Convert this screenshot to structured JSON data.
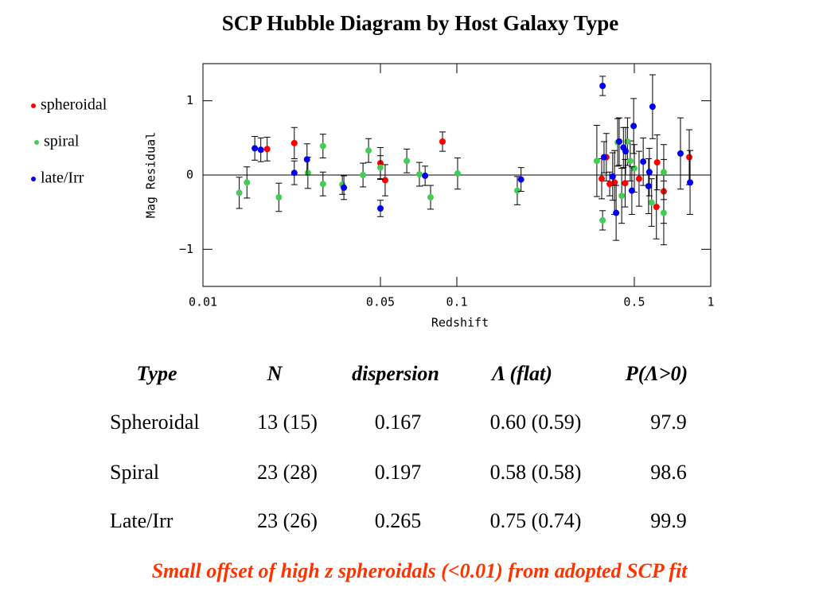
{
  "chart_data": {
    "type": "scatter",
    "title": "SCP Hubble Diagram by Host Galaxy Type",
    "xlabel": "Redshift",
    "ylabel": "Mag Residual",
    "xscale": "log",
    "xlim": [
      0.01,
      1
    ],
    "ylim": [
      -1.5,
      1.5
    ],
    "xticks": [
      0.01,
      0.05,
      0.1,
      0.5,
      1
    ],
    "yticks": [
      {
        "value": -1,
        "label": "−1"
      },
      0,
      1
    ],
    "hline": 0,
    "legend": "left",
    "series": [
      {
        "name": "spheroidal",
        "color": "#ff0000",
        "x": [
          0.0179,
          0.0229,
          0.05,
          0.0522,
          0.0878,
          0.372,
          0.388,
          0.4,
          0.418,
          0.46,
          0.522,
          0.611,
          0.615,
          0.653,
          0.823
        ],
        "values": [
          0.35,
          0.43,
          0.16,
          -0.07,
          0.45,
          -0.05,
          0.24,
          -0.12,
          -0.1,
          -0.11,
          -0.05,
          -0.43,
          0.17,
          -0.22,
          0.24
        ],
        "errors": [
          0.16,
          0.21,
          0.21,
          0.21,
          0.13,
          0.27,
          0.32,
          0.16,
          0.43,
          0.32,
          0.37,
          0.43,
          0.37,
          0.43,
          0.37
        ]
      },
      {
        "name": "spiral",
        "color": "#44cc55",
        "x": [
          0.0139,
          0.0149,
          0.0199,
          0.0259,
          0.0297,
          0.0297,
          0.0354,
          0.0427,
          0.0449,
          0.05,
          0.0635,
          0.0712,
          0.0788,
          0.1007,
          0.173,
          0.356,
          0.375,
          0.43,
          0.446,
          0.47,
          0.482,
          0.5,
          0.585,
          0.653,
          0.653
        ],
        "values": [
          -0.24,
          -0.1,
          -0.3,
          0.03,
          0.39,
          -0.12,
          -0.13,
          0,
          0.33,
          0.1,
          0.19,
          0.01,
          -0.3,
          0.02,
          -0.21,
          0.19,
          -0.61,
          0.44,
          -0.28,
          0.45,
          0.19,
          0.09,
          -0.37,
          0.04,
          -0.51
        ],
        "errors": [
          0.21,
          0.21,
          0.19,
          0.21,
          0.16,
          0.16,
          0.13,
          0.16,
          0.16,
          0.16,
          0.16,
          0.16,
          0.16,
          0.21,
          0.19,
          0.48,
          0.13,
          0.32,
          0.37,
          0.32,
          0.27,
          0.32,
          0.32,
          0.37,
          0.43
        ]
      },
      {
        "name": "late/Irr",
        "color": "#0000ee",
        "x": [
          0.016,
          0.0169,
          0.0229,
          0.0257,
          0.0359,
          0.05,
          0.075,
          0.179,
          0.375,
          0.38,
          0.411,
          0.424,
          0.436,
          0.453,
          0.462,
          0.489,
          0.497,
          0.542,
          0.569,
          0.573,
          0.59,
          0.76,
          0.829
        ],
        "values": [
          0.36,
          0.34,
          0.03,
          0.21,
          -0.17,
          -0.45,
          -0.01,
          -0.06,
          1.2,
          0.24,
          -0.02,
          -0.51,
          0.45,
          0.37,
          0.32,
          -0.21,
          0.66,
          0.18,
          -0.15,
          0.04,
          0.92,
          0.29,
          -0.1
        ],
        "errors": [
          0.16,
          0.16,
          0.16,
          0.21,
          0.16,
          0.11,
          0.13,
          0.16,
          0.13,
          0.21,
          0.32,
          0.37,
          0.32,
          0.27,
          0.32,
          0.32,
          0.37,
          0.32,
          0.37,
          0.32,
          0.43,
          0.48,
          0.43
        ]
      }
    ]
  },
  "table": {
    "header": [
      "Type",
      "N",
      "dispersion",
      "Λ (flat)",
      "P(Λ>0)"
    ],
    "rows": [
      [
        "Spheroidal",
        "13 (15)",
        "0.167",
        "0.60 (0.59)",
        "97.9"
      ],
      [
        "Spiral",
        "23 (28)",
        "0.197",
        "0.58 (0.58)",
        "98.6"
      ],
      [
        "Late/Irr",
        "23 (26)",
        "0.265",
        "0.75 (0.74)",
        "99.9"
      ]
    ]
  },
  "note": "Small offset of high z spheroidals (<0.01) from adopted SCP fit"
}
